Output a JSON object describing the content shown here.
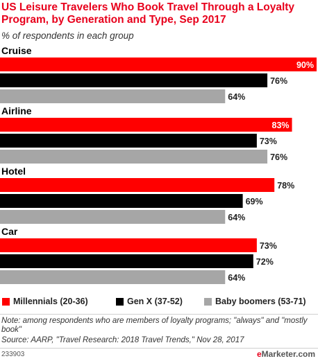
{
  "header": {
    "title": "US Leisure Travelers Who Book Travel Through a Loyalty Program, by Generation and Type, Sep 2017",
    "subtitle": "% of respondents in each group"
  },
  "chart_data": {
    "type": "bar",
    "orientation": "horizontal",
    "title": "US Leisure Travelers Who Book Travel Through a Loyalty Program, by Generation and Type, Sep 2017",
    "subtitle": "% of respondents in each group",
    "categories": [
      "Cruise",
      "Airline",
      "Hotel",
      "Car"
    ],
    "series": [
      {
        "name": "Millennials (20-36)",
        "color": "#ff0000",
        "values": [
          90,
          83,
          78,
          73
        ]
      },
      {
        "name": "Gen X (37-52)",
        "color": "#000000",
        "values": [
          76,
          73,
          69,
          72
        ]
      },
      {
        "name": "Baby boomers (53-71)",
        "color": "#a6a6a6",
        "values": [
          64,
          76,
          64,
          64
        ]
      }
    ],
    "value_suffix": "%",
    "xlim": [
      0,
      90
    ],
    "grid": false,
    "legend_position": "bottom"
  },
  "footer": {
    "note": "Note: among respondents who are members of loyalty programs; \"always\" and \"mostly book\"",
    "source": "Source: AARP, \"Travel Research: 2018 Travel Trends,\" Nov 28, 2017",
    "chart_id": "233903",
    "brand_e": "e",
    "brand_rest": "Marketer.com"
  }
}
